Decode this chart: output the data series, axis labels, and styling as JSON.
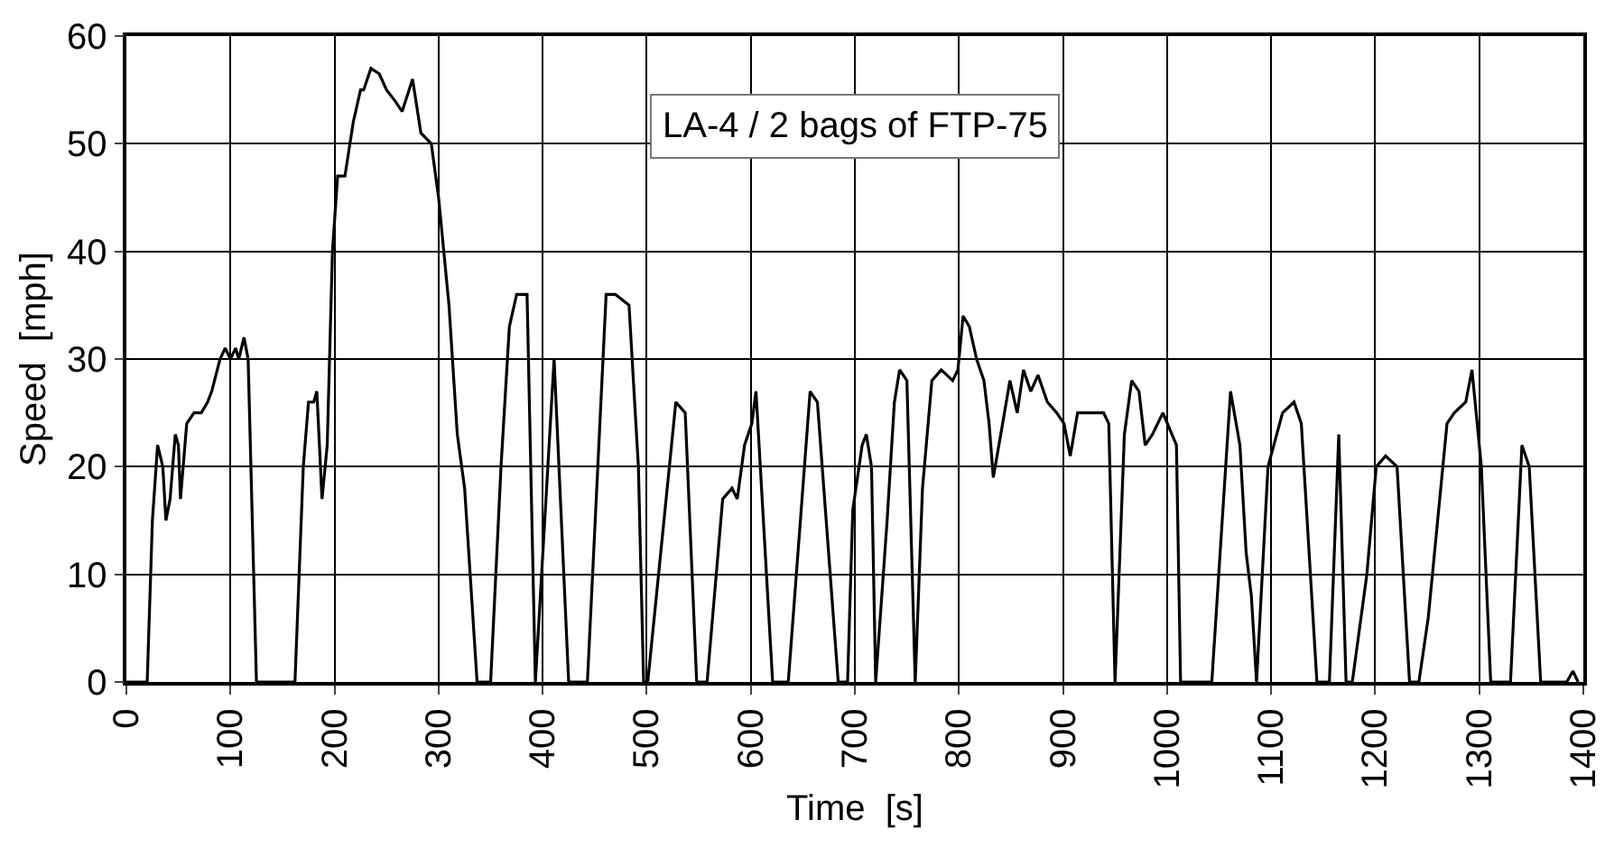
{
  "chart_data": {
    "type": "line",
    "xlabel": "Time  [s]",
    "ylabel": "Speed  [mph]",
    "annotations": [
      "LA-4 / 2 bags of FTP-75"
    ],
    "xlim": [
      0,
      1400
    ],
    "xticks": [
      0,
      100,
      200,
      300,
      400,
      500,
      600,
      700,
      800,
      900,
      1000,
      1100,
      1200,
      1300,
      1400
    ],
    "ylim": [
      0,
      60
    ],
    "yticks": [
      0,
      10,
      20,
      30,
      40,
      50,
      60
    ],
    "grid": true,
    "marker": "none",
    "line_style": "solid",
    "series": [
      {
        "color": "#000000",
        "x": [
          0,
          20,
          25,
          30,
          35,
          38,
          42,
          47,
          50,
          52,
          58,
          65,
          72,
          78,
          82,
          90,
          95,
          100,
          105,
          108,
          113,
          117,
          125,
          162,
          170,
          175,
          180,
          183,
          188,
          193,
          198,
          203,
          210,
          218,
          225,
          228,
          235,
          243,
          250,
          258,
          265,
          275,
          283,
          293,
          300,
          310,
          318,
          325,
          337,
          350,
          360,
          368,
          375,
          385,
          393,
          411,
          425,
          443,
          461,
          470,
          483,
          492,
          497,
          501,
          528,
          537,
          548,
          558,
          573,
          582,
          587,
          594,
          601,
          605,
          621,
          636,
          657,
          664,
          684,
          693,
          698,
          707,
          711,
          716,
          720,
          731,
          738,
          743,
          750,
          758,
          765,
          774,
          783,
          794,
          799,
          804,
          810,
          817,
          824,
          829,
          833,
          842,
          849,
          856,
          862,
          869,
          876,
          885,
          894,
          901,
          907,
          914,
          922,
          928,
          939,
          944,
          950,
          959,
          966,
          973,
          979,
          986,
          996,
          1009,
          1013,
          1043,
          1061,
          1070,
          1076,
          1081,
          1086,
          1097,
          1111,
          1122,
          1129,
          1144,
          1156,
          1165,
          1172,
          1178,
          1192,
          1201,
          1210,
          1221,
          1233,
          1242,
          1251,
          1257,
          1269,
          1276,
          1287,
          1293,
          1302,
          1311,
          1330,
          1341,
          1348,
          1359,
          1384,
          1390,
          1395
        ],
        "values": [
          0,
          0,
          15,
          22,
          20,
          15,
          17,
          23,
          22,
          17,
          24,
          25,
          25,
          26,
          27,
          30,
          31,
          30,
          31,
          30,
          32,
          30,
          0,
          0,
          20,
          26,
          26,
          27,
          17,
          22,
          40,
          47,
          47,
          52,
          55,
          55,
          57,
          56.5,
          55,
          54,
          53,
          56,
          51,
          50,
          45,
          35,
          23,
          18,
          0,
          0,
          20,
          33,
          36,
          36,
          0,
          30,
          0,
          0,
          36,
          36,
          35,
          20,
          0,
          0,
          26,
          25,
          0,
          0,
          17,
          18,
          17,
          22,
          24,
          27,
          0,
          0,
          27,
          26,
          0,
          0,
          16,
          22,
          23,
          20,
          0,
          15,
          26,
          29,
          28,
          0,
          18,
          28,
          29,
          28,
          29,
          34,
          33,
          30,
          28,
          24,
          19,
          24,
          28,
          25,
          29,
          27,
          28.5,
          26,
          25,
          24,
          21,
          25,
          25,
          25,
          25,
          24,
          0,
          23,
          28,
          27,
          22,
          23,
          25,
          22,
          0,
          0,
          27,
          22,
          12,
          8,
          0,
          20,
          25,
          26,
          24,
          0,
          0,
          23,
          0,
          0,
          10,
          20,
          21,
          20,
          0,
          0,
          6,
          12,
          24,
          25,
          26,
          29,
          20,
          0,
          0,
          22,
          20,
          0,
          0,
          1,
          0
        ]
      }
    ]
  }
}
